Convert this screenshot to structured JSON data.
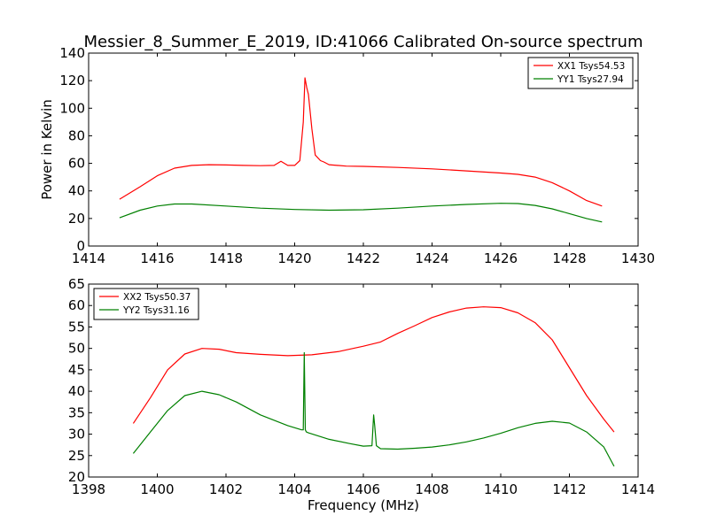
{
  "title": "Messier_8_Summer_E_2019, ID:41066 Calibrated On-source spectrum",
  "chart_data": [
    {
      "type": "line",
      "ylabel": "Power in Kelvin",
      "xlabel": "",
      "xlim": [
        1414,
        1430
      ],
      "ylim": [
        0,
        140
      ],
      "xticks": [
        1414,
        1416,
        1418,
        1420,
        1422,
        1424,
        1426,
        1428,
        1430
      ],
      "yticks": [
        0,
        20,
        40,
        60,
        80,
        100,
        120,
        140
      ],
      "grid": false,
      "legend_position": "top-right",
      "series": [
        {
          "name": "XX1 Tsys54.53",
          "color": "#ff0000",
          "x": [
            1414.9,
            1415.5,
            1416.0,
            1416.5,
            1417.0,
            1417.5,
            1418.0,
            1418.5,
            1419.0,
            1419.4,
            1419.6,
            1419.8,
            1420.0,
            1420.15,
            1420.25,
            1420.3,
            1420.35,
            1420.4,
            1420.5,
            1420.6,
            1420.75,
            1420.85,
            1421.0,
            1421.5,
            1422.0,
            1423.0,
            1424.0,
            1425.0,
            1426.0,
            1426.5,
            1427.0,
            1427.5,
            1428.0,
            1428.5,
            1428.95
          ],
          "values": [
            34,
            43,
            51,
            56.5,
            58.5,
            59,
            58.8,
            58.5,
            58.3,
            58.5,
            61.5,
            58.5,
            58.5,
            62,
            90,
            122,
            115,
            110,
            85,
            66,
            62,
            61,
            59,
            58,
            57.8,
            57,
            56,
            54.5,
            53,
            52,
            50,
            46,
            40,
            33,
            29
          ]
        },
        {
          "name": "YY1 Tsys27.94",
          "color": "#008000",
          "x": [
            1414.9,
            1415.5,
            1416.0,
            1416.5,
            1417.0,
            1418.0,
            1419.0,
            1420.0,
            1421.0,
            1422.0,
            1423.0,
            1424.0,
            1425.0,
            1426.0,
            1426.5,
            1427.0,
            1427.5,
            1428.0,
            1428.5,
            1428.95
          ],
          "values": [
            20.5,
            26,
            29,
            30.5,
            30.5,
            29,
            27.5,
            26.5,
            26,
            26.3,
            27.5,
            29,
            30.2,
            31,
            30.8,
            29.5,
            27,
            23.5,
            20,
            17.5
          ]
        }
      ]
    },
    {
      "type": "line",
      "xlabel": "Frequency (MHz)",
      "ylabel": "",
      "xlim": [
        1398,
        1414
      ],
      "ylim": [
        20,
        65
      ],
      "xticks": [
        1398,
        1400,
        1402,
        1404,
        1406,
        1408,
        1410,
        1412,
        1414
      ],
      "yticks": [
        20,
        25,
        30,
        35,
        40,
        45,
        50,
        55,
        60,
        65
      ],
      "grid": false,
      "legend_position": "top-left",
      "series": [
        {
          "name": "XX2 Tsys50.37",
          "color": "#ff0000",
          "x": [
            1399.3,
            1399.8,
            1400.3,
            1400.8,
            1401.3,
            1401.8,
            1402.3,
            1403.0,
            1403.8,
            1404.5,
            1405.3,
            1406.0,
            1406.5,
            1407.0,
            1407.5,
            1408.0,
            1408.5,
            1409.0,
            1409.5,
            1410.0,
            1410.5,
            1411.0,
            1411.5,
            1412.0,
            1412.5,
            1413.0,
            1413.3
          ],
          "values": [
            32.5,
            38.5,
            45,
            48.7,
            50,
            49.8,
            49,
            48.6,
            48.3,
            48.5,
            49.3,
            50.5,
            51.5,
            53.5,
            55.3,
            57.2,
            58.5,
            59.4,
            59.7,
            59.5,
            58.3,
            56,
            52,
            45.5,
            39,
            33.5,
            30.5
          ]
        },
        {
          "name": "YY2 Tsys31.16",
          "color": "#008000",
          "x": [
            1399.3,
            1399.8,
            1400.3,
            1400.8,
            1401.3,
            1401.8,
            1402.3,
            1403.0,
            1403.8,
            1404.2,
            1404.25,
            1404.28,
            1404.31,
            1404.34,
            1404.4,
            1405.0,
            1405.6,
            1406.0,
            1406.25,
            1406.3,
            1406.33,
            1406.38,
            1406.5,
            1407.0,
            1407.5,
            1408.0,
            1408.5,
            1409.0,
            1409.5,
            1410.0,
            1410.5,
            1411.0,
            1411.5,
            1412.0,
            1412.5,
            1413.0,
            1413.3
          ],
          "values": [
            25.5,
            30.5,
            35.5,
            39,
            40,
            39.2,
            37.5,
            34.5,
            32,
            31,
            31,
            49,
            31,
            30.5,
            30.3,
            28.8,
            27.8,
            27.2,
            27.3,
            34.5,
            32,
            27.3,
            26.6,
            26.5,
            26.7,
            27,
            27.5,
            28.2,
            29.1,
            30.2,
            31.5,
            32.5,
            33,
            32.6,
            30.5,
            27,
            22.5
          ]
        }
      ]
    }
  ]
}
